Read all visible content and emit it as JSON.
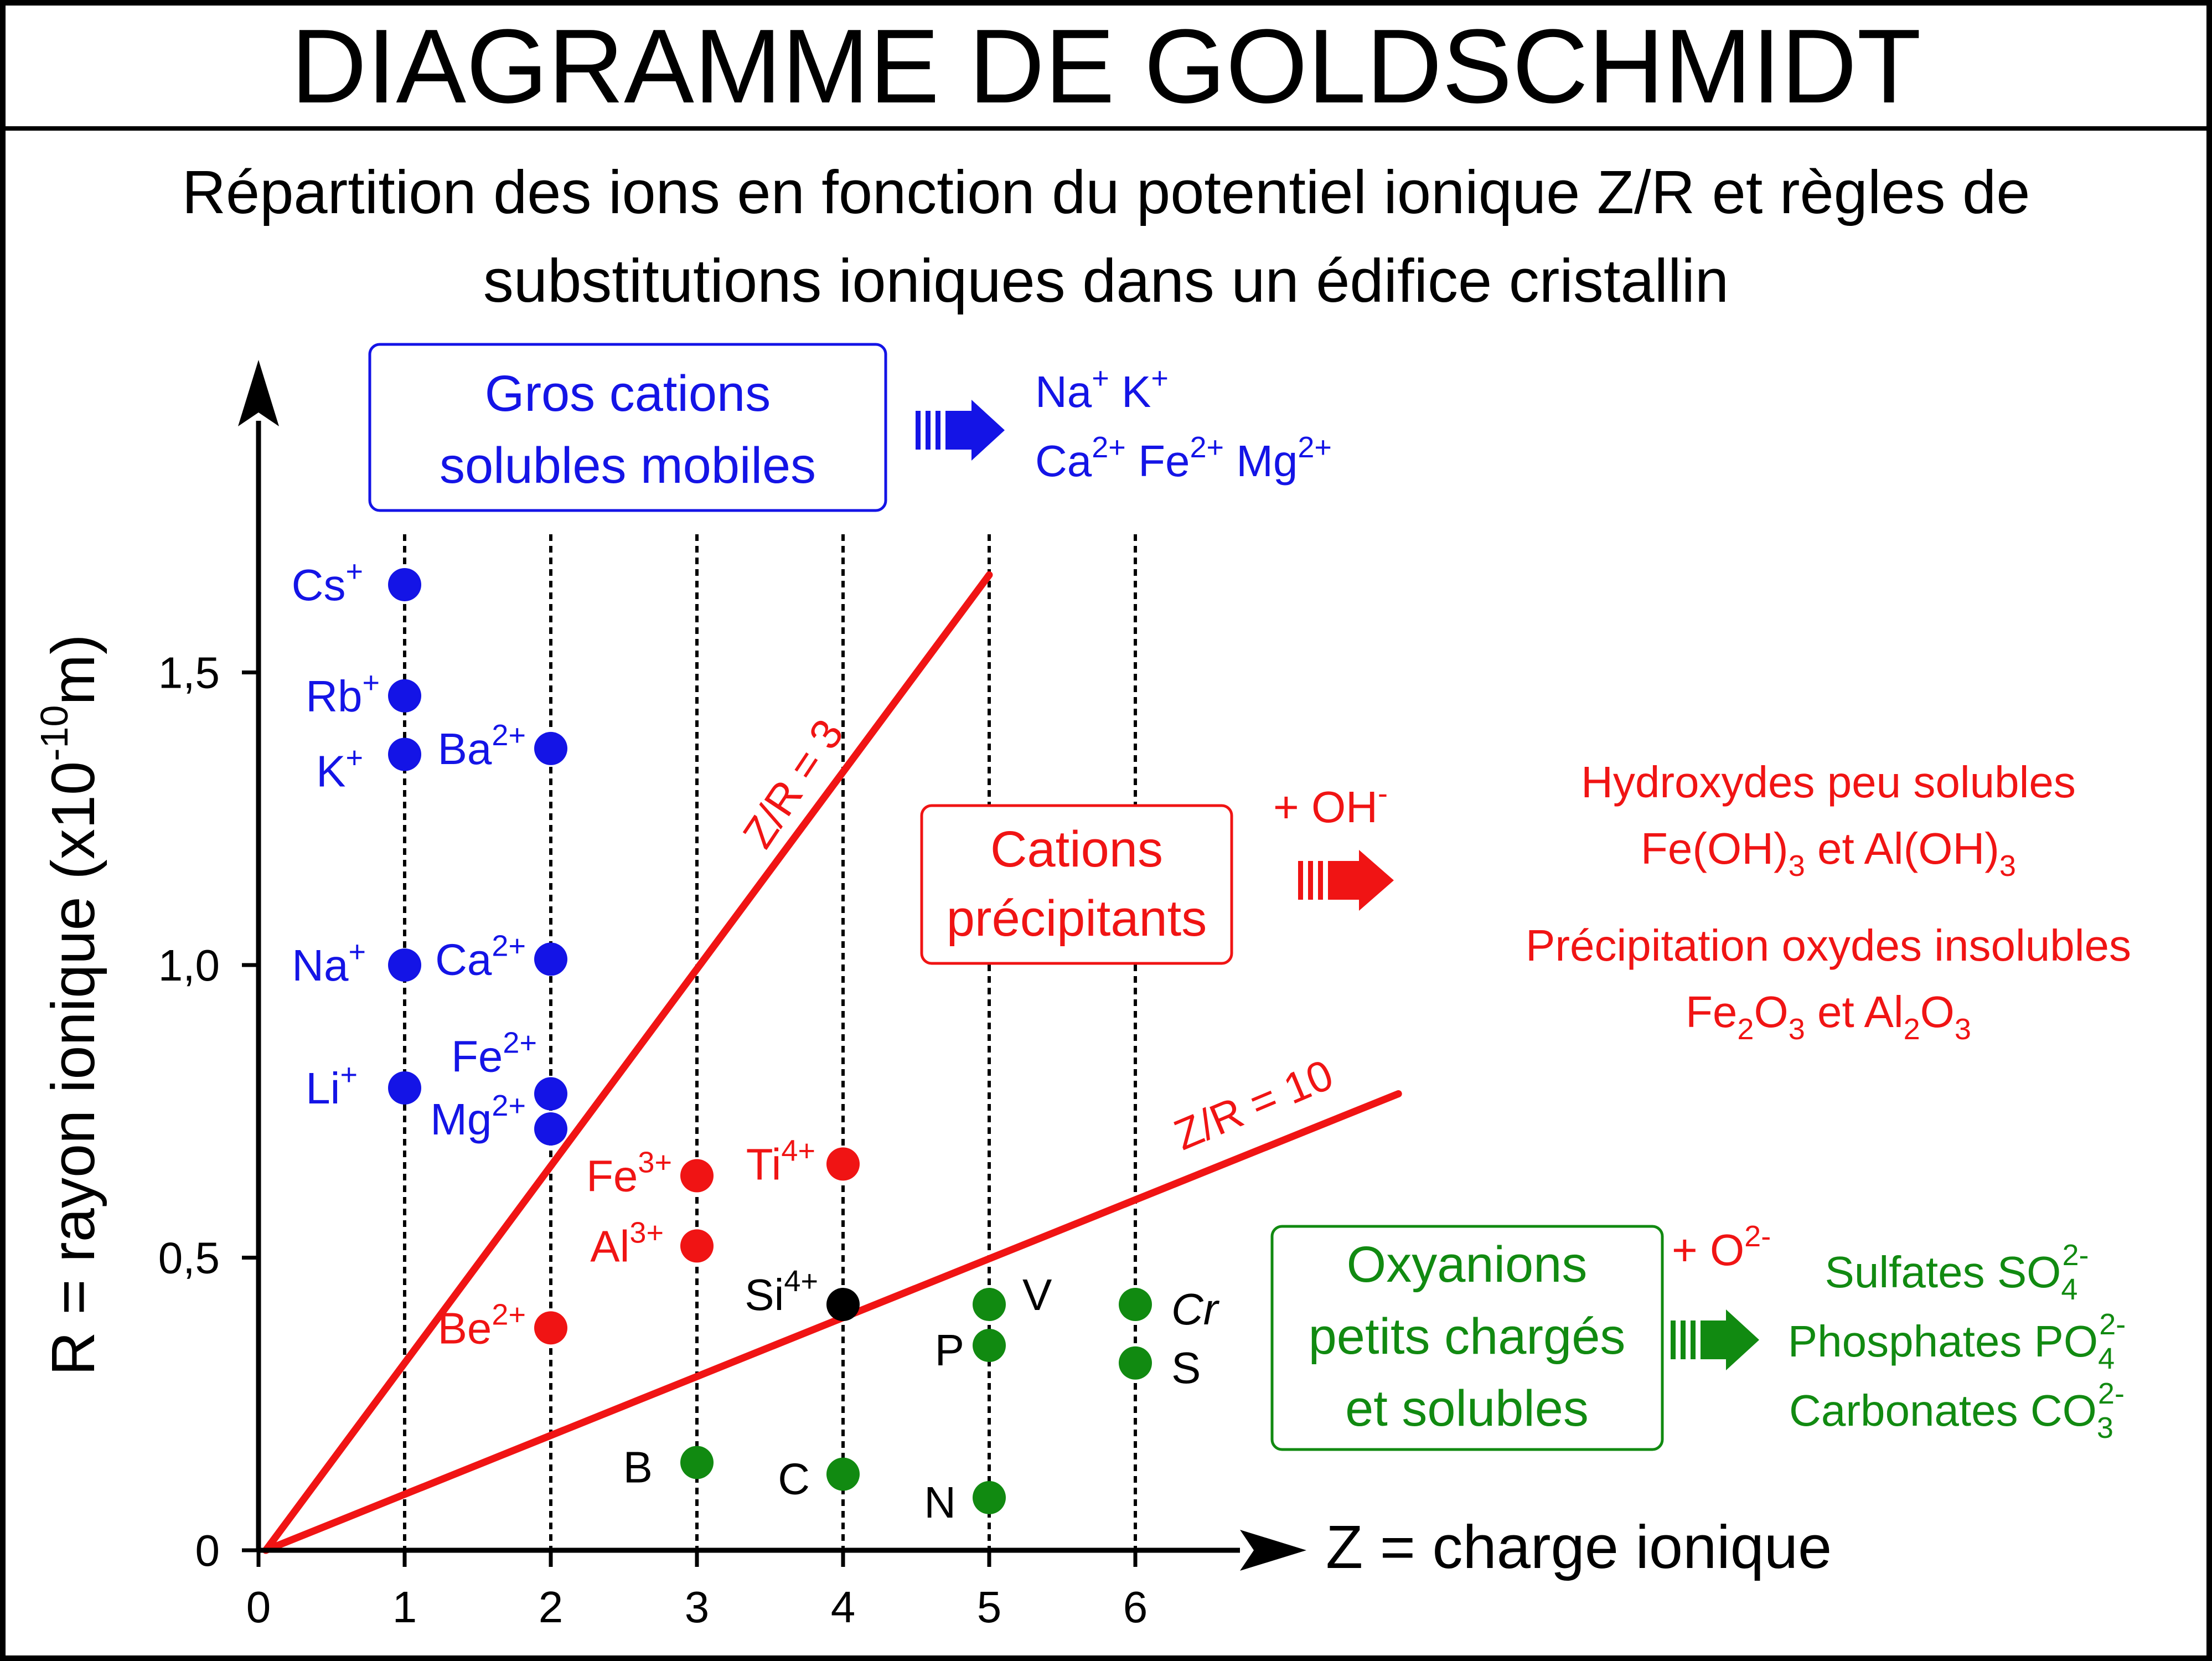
{
  "header": {
    "title": "DIAGRAMME DE GOLDSCHMIDT",
    "subtitle_line1": "Répartition des ions en fonction du potentiel ionique Z/R et règles de",
    "subtitle_line2": "substitutions ioniques dans un édifice cristallin"
  },
  "colors": {
    "blue": "#1414e6",
    "red": "#f01414",
    "green": "#118a11",
    "black": "#000000"
  },
  "chart_data": {
    "type": "scatter",
    "xlabel": "Z = charge ionique",
    "ylabel_prefix": "R = rayon ionique (x10",
    "ylabel_exp": "-10",
    "ylabel_suffix": "m)",
    "xlim": [
      0,
      6
    ],
    "ylim": [
      0,
      1.65
    ],
    "x_ticks": [
      "0",
      "1",
      "2",
      "3",
      "4",
      "5",
      "6"
    ],
    "y_ticks": [
      {
        "value": 0,
        "label": "0"
      },
      {
        "value": 0.5,
        "label": "0,5"
      },
      {
        "value": 1.0,
        "label": "1,0"
      },
      {
        "value": 1.5,
        "label": "1,5"
      }
    ],
    "grid": "dotted vertical lines at Z = 1 to 6",
    "lines": [
      {
        "label": "Z/R = 3",
        "slope_ratio": 3,
        "x_end": 5.0
      },
      {
        "label": "Z/R = 10",
        "slope_ratio": 10,
        "x_end": 7.8
      }
    ],
    "points": [
      {
        "ion": "Cs",
        "charge": "+",
        "x": 1,
        "y": 1.65,
        "group": "blue"
      },
      {
        "ion": "Rb",
        "charge": "+",
        "x": 1,
        "y": 1.46,
        "group": "blue"
      },
      {
        "ion": "K",
        "charge": "+",
        "x": 1,
        "y": 1.36,
        "group": "blue"
      },
      {
        "ion": "Na",
        "charge": "+",
        "x": 1,
        "y": 1.0,
        "group": "blue"
      },
      {
        "ion": "Li",
        "charge": "+",
        "x": 1,
        "y": 0.79,
        "group": "blue"
      },
      {
        "ion": "Ba",
        "charge": "2+",
        "x": 2,
        "y": 1.37,
        "group": "blue"
      },
      {
        "ion": "Ca",
        "charge": "2+",
        "x": 2,
        "y": 1.01,
        "group": "blue"
      },
      {
        "ion": "Fe",
        "charge": "2+",
        "x": 2,
        "y": 0.78,
        "group": "blue"
      },
      {
        "ion": "Mg",
        "charge": "2+",
        "x": 2,
        "y": 0.72,
        "group": "blue"
      },
      {
        "ion": "Be",
        "charge": "2+",
        "x": 2,
        "y": 0.38,
        "group": "red"
      },
      {
        "ion": "Fe",
        "charge": "3+",
        "x": 3,
        "y": 0.64,
        "group": "red"
      },
      {
        "ion": "Al",
        "charge": "3+",
        "x": 3,
        "y": 0.52,
        "group": "red"
      },
      {
        "ion": "Ti",
        "charge": "4+",
        "x": 4,
        "y": 0.66,
        "group": "red"
      },
      {
        "ion": "Si",
        "charge": "4+",
        "x": 4,
        "y": 0.42,
        "group": "black"
      },
      {
        "ion": "V",
        "charge": "",
        "x": 5,
        "y": 0.42,
        "group": "green"
      },
      {
        "ion": "P",
        "charge": "",
        "x": 5,
        "y": 0.35,
        "group": "green"
      },
      {
        "ion": "N",
        "charge": "",
        "x": 5,
        "y": 0.09,
        "group": "green"
      },
      {
        "ion": "B",
        "charge": "",
        "x": 3,
        "y": 0.15,
        "group": "green"
      },
      {
        "ion": "C",
        "charge": "",
        "x": 4,
        "y": 0.13,
        "group": "green"
      },
      {
        "ion": "Cr",
        "charge": "",
        "x": 6,
        "y": 0.42,
        "group": "green"
      },
      {
        "ion": "S",
        "charge": "",
        "x": 6,
        "y": 0.32,
        "group": "green"
      }
    ]
  },
  "boxes": {
    "blue": {
      "line1": "Gros cations",
      "line2": "solubles mobiles"
    },
    "red": {
      "line1": "Cations",
      "line2": "précipitants"
    },
    "green": {
      "line1": "Oxyanions",
      "line2": "petits chargés",
      "line3": "et solubles"
    }
  },
  "outcomes": {
    "blue_ions": [
      {
        "ion": "Na",
        "charge": "+"
      },
      {
        "ion": "K",
        "charge": "+"
      },
      {
        "ion": "Ca",
        "charge": "2+"
      },
      {
        "ion": "Fe",
        "charge": "2+"
      },
      {
        "ion": "Mg",
        "charge": "2+"
      }
    ],
    "red_reagent": {
      "text": "+ OH",
      "charge": "-"
    },
    "red_line1": "Hydroxydes peu solubles",
    "red_line2": {
      "a": "Fe(OH)",
      "a_sub": "3",
      "b": " et Al(OH)",
      "b_sub": "3"
    },
    "red_line3": "Précipitation oxydes insolubles",
    "red_line4": {
      "a": "Fe",
      "a_sub": "2",
      "b": "O",
      "b_sub": "3",
      "c": " et Al",
      "c_sub": "2",
      "d": "O",
      "d_sub": "3"
    },
    "green_reagent": {
      "text": "+ O",
      "charge": "2-"
    },
    "green_items": [
      {
        "text": "Sulfates SO",
        "sub": "4",
        "sup": "2-"
      },
      {
        "text": "Phosphates PO",
        "sub": "4",
        "sup": "2-"
      },
      {
        "text": "Carbonates CO",
        "sub": "3",
        "sup": "2-"
      }
    ]
  }
}
